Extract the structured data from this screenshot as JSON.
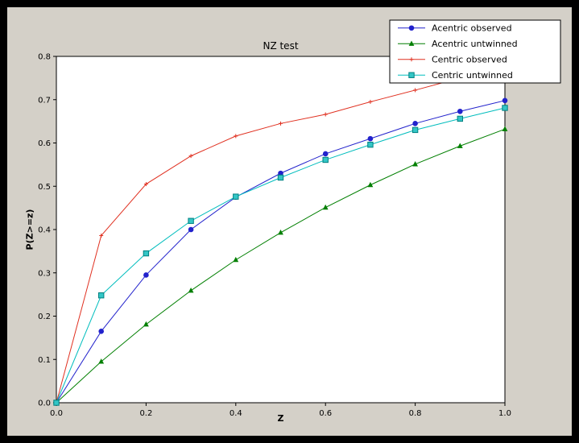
{
  "figure": {
    "frame_color": "#000000",
    "face_color": "#d4d0c8",
    "plot_bg": "#ffffff"
  },
  "chart_data": {
    "type": "line",
    "title": "NZ test",
    "xlabel": "Z",
    "ylabel": "P(Z>=z)",
    "xlim": [
      0.0,
      1.0
    ],
    "ylim": [
      0.0,
      0.8
    ],
    "xticks": [
      0.0,
      0.2,
      0.4,
      0.6,
      0.8,
      1.0
    ],
    "yticks": [
      0.0,
      0.1,
      0.2,
      0.3,
      0.4,
      0.5,
      0.6,
      0.7,
      0.8
    ],
    "grid": false,
    "legend_position": "upper right",
    "x": [
      0.0,
      0.1,
      0.2,
      0.3,
      0.4,
      0.5,
      0.6,
      0.7,
      0.8,
      0.9,
      1.0
    ],
    "series": [
      {
        "name": "Acentric observed",
        "color": "#2222cc",
        "marker": "circle",
        "values": [
          0.0,
          0.165,
          0.295,
          0.4,
          0.475,
          0.53,
          0.575,
          0.61,
          0.645,
          0.673,
          0.698
        ]
      },
      {
        "name": "Acentric untwinned",
        "color": "#007f00",
        "marker": "triangle",
        "values": [
          0.0,
          0.095,
          0.181,
          0.259,
          0.33,
          0.393,
          0.451,
          0.503,
          0.551,
          0.593,
          0.632
        ]
      },
      {
        "name": "Centric observed",
        "color": "#e03020",
        "marker": "plus",
        "values": [
          0.0,
          0.386,
          0.505,
          0.57,
          0.616,
          0.645,
          0.666,
          0.695,
          0.722,
          0.75,
          0.776
        ]
      },
      {
        "name": "Centric untwinned",
        "color": "#00bdbd",
        "marker": "square",
        "marker_fill": "#33c6c6",
        "marker_edge": "#008080",
        "values": [
          0.0,
          0.248,
          0.345,
          0.42,
          0.476,
          0.52,
          0.561,
          0.596,
          0.63,
          0.656,
          0.681
        ]
      }
    ]
  }
}
